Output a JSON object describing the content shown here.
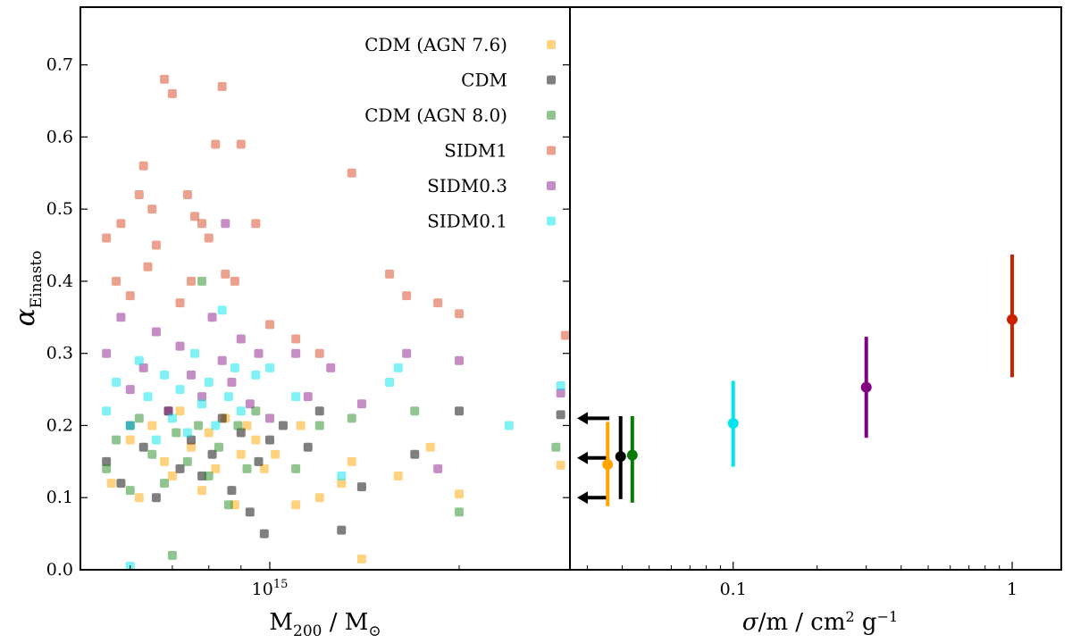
{
  "chart_data": [
    {
      "type": "scatter",
      "xscale": "log",
      "xlim": [
        500000000000000,
        3000000000000000
      ],
      "ylim": [
        0.0,
        0.78
      ],
      "xlabel": "M200 / M⊙",
      "ylabel": "αEinasto",
      "xtick_labels": [
        "10^15"
      ],
      "ytick_labels": [
        "0.0",
        "0.1",
        "0.2",
        "0.3",
        "0.4",
        "0.5",
        "0.6",
        "0.7"
      ],
      "legend_position": "top-right",
      "marker_opacity": 0.5,
      "series": [
        {
          "name": "CDM (AGN 7.6)",
          "color": "#ffa500",
          "x_1e15": [
            0.56,
            0.6,
            0.62,
            0.65,
            0.68,
            0.7,
            0.72,
            0.75,
            0.78,
            0.8,
            0.82,
            0.85,
            0.88,
            0.9,
            0.92,
            0.95,
            0.98,
            1.02,
            1.1,
            1.2,
            1.3,
            1.4,
            1.6,
            1.8,
            2.0,
            2.9,
            1.12,
            1.35
          ],
          "y": [
            0.12,
            0.18,
            0.1,
            0.2,
            0.15,
            0.13,
            0.22,
            0.17,
            0.11,
            0.19,
            0.14,
            0.21,
            0.09,
            0.16,
            0.2,
            0.18,
            0.14,
            0.16,
            0.09,
            0.1,
            0.12,
            0.015,
            0.13,
            0.17,
            0.105,
            0.145,
            0.2,
            0.15
          ]
        },
        {
          "name": "CDM",
          "color": "#000000",
          "x_1e15": [
            0.55,
            0.58,
            0.6,
            0.63,
            0.66,
            0.69,
            0.72,
            0.75,
            0.78,
            0.81,
            0.84,
            0.87,
            0.9,
            0.93,
            0.96,
            1.0,
            1.05,
            1.2,
            1.3,
            1.4,
            1.7,
            2.0,
            2.9,
            1.15,
            0.98
          ],
          "y": [
            0.15,
            0.12,
            0.2,
            0.17,
            0.1,
            0.22,
            0.14,
            0.18,
            0.13,
            0.16,
            0.21,
            0.11,
            0.19,
            0.08,
            0.15,
            0.18,
            0.2,
            0.22,
            0.055,
            0.115,
            0.16,
            0.22,
            0.215,
            0.17,
            0.05
          ]
        },
        {
          "name": "CDM (AGN 8.0)",
          "color": "#228b22",
          "x_1e15": [
            0.55,
            0.57,
            0.6,
            0.62,
            0.65,
            0.68,
            0.71,
            0.74,
            0.77,
            0.8,
            0.83,
            0.86,
            0.89,
            0.92,
            0.95,
            0.78,
            1.1,
            1.2,
            1.35,
            1.7,
            2.0,
            2.85,
            0.7
          ],
          "y": [
            0.14,
            0.18,
            0.11,
            0.21,
            0.16,
            0.12,
            0.19,
            0.15,
            0.2,
            0.13,
            0.17,
            0.09,
            0.2,
            0.14,
            0.22,
            0.4,
            0.14,
            0.2,
            0.21,
            0.22,
            0.08,
            0.17,
            0.02
          ]
        },
        {
          "name": "SIDM1",
          "color": "#d9411e",
          "x_1e15": [
            0.55,
            0.57,
            0.6,
            0.58,
            0.62,
            0.63,
            0.64,
            0.65,
            0.66,
            0.68,
            0.7,
            0.72,
            0.74,
            0.75,
            0.76,
            0.78,
            0.8,
            0.82,
            0.85,
            0.88,
            0.9,
            0.95,
            1.0,
            1.1,
            1.2,
            1.35,
            1.55,
            1.65,
            1.85,
            2.0,
            2.95,
            0.84
          ],
          "y": [
            0.46,
            0.4,
            0.38,
            0.48,
            0.52,
            0.56,
            0.42,
            0.5,
            0.45,
            0.68,
            0.66,
            0.37,
            0.52,
            0.4,
            0.49,
            0.48,
            0.46,
            0.59,
            0.41,
            0.4,
            0.59,
            0.48,
            0.34,
            0.32,
            0.3,
            0.55,
            0.41,
            0.38,
            0.37,
            0.355,
            0.325,
            0.67
          ]
        },
        {
          "name": "SIDM0.3",
          "color": "#8b1a8b",
          "x_1e15": [
            0.55,
            0.58,
            0.6,
            0.63,
            0.66,
            0.69,
            0.72,
            0.75,
            0.78,
            0.81,
            0.84,
            0.87,
            0.9,
            0.93,
            0.96,
            1.0,
            1.1,
            1.15,
            1.25,
            1.4,
            1.65,
            1.85,
            2.0,
            2.9,
            0.85
          ],
          "y": [
            0.3,
            0.35,
            0.25,
            0.28,
            0.33,
            0.22,
            0.31,
            0.27,
            0.24,
            0.35,
            0.29,
            0.26,
            0.32,
            0.23,
            0.3,
            0.21,
            0.3,
            0.24,
            0.28,
            0.23,
            0.3,
            0.14,
            0.29,
            0.245,
            0.48
          ]
        },
        {
          "name": "SIDM0.1",
          "color": "#00e5ee",
          "x_1e15": [
            0.55,
            0.57,
            0.6,
            0.62,
            0.64,
            0.66,
            0.68,
            0.7,
            0.72,
            0.74,
            0.76,
            0.78,
            0.8,
            0.82,
            0.84,
            0.86,
            0.88,
            0.9,
            0.95,
            1.0,
            1.1,
            1.3,
            1.55,
            1.6,
            2.4,
            2.9,
            0.6
          ],
          "y": [
            0.22,
            0.26,
            0.2,
            0.29,
            0.24,
            0.18,
            0.27,
            0.21,
            0.25,
            0.19,
            0.3,
            0.23,
            0.26,
            0.2,
            0.36,
            0.24,
            0.28,
            0.22,
            0.27,
            0.28,
            0.24,
            0.13,
            0.26,
            0.28,
            0.2,
            0.255,
            0.005
          ]
        }
      ]
    },
    {
      "type": "errorbar",
      "xscale": "log",
      "xlim": [
        0.026,
        1.5
      ],
      "ylim": [
        0.0,
        0.78
      ],
      "xlabel": "σ/m / cm² g⁻¹",
      "xtick_labels": [
        "0.1",
        "1"
      ],
      "upper_limit_arrows_y": [
        0.21,
        0.155,
        0.1
      ],
      "upper_limit_arrow_x": 0.036,
      "points": [
        {
          "name": "CDM (AGN 7.6)",
          "color": "#ffa500",
          "x": 0.0355,
          "y": 0.146,
          "ylow": 0.088,
          "yhigh": 0.205
        },
        {
          "name": "CDM",
          "color": "#000000",
          "x": 0.0395,
          "y": 0.157,
          "ylow": 0.098,
          "yhigh": 0.213
        },
        {
          "name": "CDM (AGN 8.0)",
          "color": "#0a7a0a",
          "x": 0.0435,
          "y": 0.159,
          "ylow": 0.093,
          "yhigh": 0.213
        },
        {
          "name": "SIDM0.1",
          "color": "#00e5ee",
          "x": 0.1,
          "y": 0.203,
          "ylow": 0.143,
          "yhigh": 0.262
        },
        {
          "name": "SIDM0.3",
          "color": "#800080",
          "x": 0.3,
          "y": 0.253,
          "ylow": 0.183,
          "yhigh": 0.323
        },
        {
          "name": "SIDM1",
          "color": "#cc2200",
          "x": 1.0,
          "y": 0.347,
          "ylow": 0.267,
          "yhigh": 0.437
        }
      ]
    }
  ]
}
